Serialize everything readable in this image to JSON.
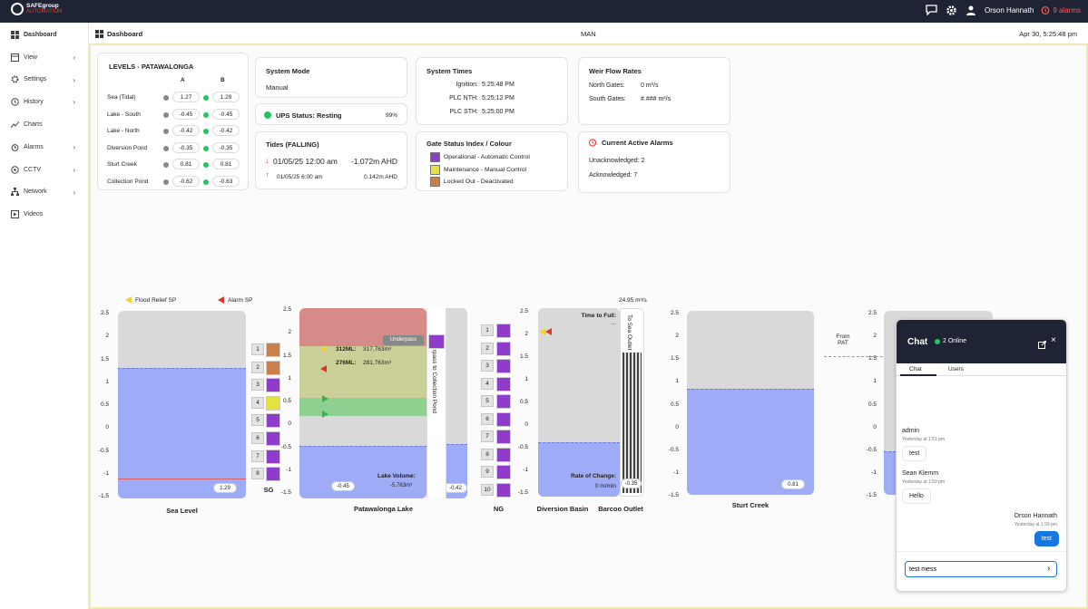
{
  "topbar": {
    "brand_line1": "SAFEgroup",
    "brand_line2": "AUTOMATION",
    "user_name": "Orson Hannath",
    "alarm_count": "9 alarms"
  },
  "sidebar": {
    "items": [
      {
        "label": "Dashboard",
        "icon": "grid-icon",
        "active": true
      },
      {
        "label": "View",
        "icon": "window-icon",
        "chevron": true
      },
      {
        "label": "Settings",
        "icon": "gear-icon",
        "chevron": true
      },
      {
        "label": "History",
        "icon": "history-icon",
        "chevron": true
      },
      {
        "label": "Charts",
        "icon": "trend-icon"
      },
      {
        "label": "Alarms",
        "icon": "alarm-clock-icon",
        "chevron": true
      },
      {
        "label": "CCTV",
        "icon": "camera-icon",
        "chevron": true
      },
      {
        "label": "Network",
        "icon": "network-icon",
        "chevron": true
      },
      {
        "label": "Videos",
        "icon": "play-icon"
      }
    ]
  },
  "header": {
    "title": "Dashboard",
    "mode": "MAN",
    "datetime": "Apr 30, 5:25:48 pm"
  },
  "levels": {
    "title": "LEVELS - PATAWALONGA",
    "col_a": "A",
    "col_b": "B",
    "rows": [
      {
        "name": "Sea (Tidal)",
        "a": "1.27",
        "b": "1.29"
      },
      {
        "name": "Lake - South",
        "a": "-0.45",
        "b": "-0.45"
      },
      {
        "name": "Lake - North",
        "a": "-0.42",
        "b": "-0.42"
      },
      {
        "name": "Diversion Pond",
        "a": "-0.35",
        "b": "-0.35"
      },
      {
        "name": "Sturt Creek",
        "a": "0.81",
        "b": "0.81"
      },
      {
        "name": "Collection Pond",
        "a": "-0.62",
        "b": "-0.63"
      }
    ]
  },
  "system_mode": {
    "title": "System Mode",
    "value": "Manual"
  },
  "ups": {
    "label": "UPS Status: Resting",
    "percent": "99%"
  },
  "tides": {
    "title": "Tides (FALLING)",
    "row1_time": "01/05/25 12:00 am",
    "row1_value": "-1.072m AHD",
    "row2_time": "01/05/25 6:00 am",
    "row2_value": "0.142m AHD"
  },
  "system_times": {
    "title": "System Times",
    "rows": [
      {
        "label": "Ignition:",
        "value": "5:25:48 PM"
      },
      {
        "label": "PLC NTH:",
        "value": "5:25:12 PM"
      },
      {
        "label": "PLC STH:",
        "value": "5:25:00 PM"
      }
    ]
  },
  "gate_status": {
    "title": "Gate Status Index / Colour",
    "items": [
      {
        "label": "Operational - Automatic Control",
        "color": "#8e3cc9"
      },
      {
        "label": "Maintenance - Manual Control",
        "color": "#e4e23c"
      },
      {
        "label": "Locked Out - Deactivated",
        "color": "#c9804a"
      }
    ]
  },
  "weir": {
    "title": "Weir Flow Rates",
    "north_label": "North Gates:",
    "north_value": "0 m³/s",
    "south_label": "South Gates:",
    "south_value": "#.### m³/s"
  },
  "current_alarms": {
    "title": "Current Active Alarms",
    "unack": "Unacknowledged: 2",
    "ack": "Acknowledged: 7"
  },
  "legend": {
    "flood": "Flood Relief SP",
    "alarm": "Alarm SP"
  },
  "axis_ticks": [
    "2.5",
    "2",
    "1.5",
    "1",
    "0.5",
    "0",
    "-0.5",
    "-1",
    "-1.5"
  ],
  "sea": {
    "label": "Sea Level",
    "value": "1.29",
    "level": 1.29
  },
  "sg": {
    "label": "SG",
    "numbers": [
      "1",
      "2",
      "3",
      "4",
      "5",
      "6",
      "7",
      "8"
    ]
  },
  "lake": {
    "label": "Patawalonga Lake",
    "underpass": "Underpass",
    "row1_label": "312ML:",
    "row1_value": "317,763m³",
    "row2_label": "276ML:",
    "row2_value": "281,763m³",
    "volume_label": "Lake Volume:",
    "volume_value": "-5,763m³",
    "left_value": "-0.45",
    "right_value": "-0.42",
    "side_text": "Underpass to Collection Pond",
    "level": -0.45
  },
  "ng": {
    "label": "NG",
    "numbers": [
      "1",
      "2",
      "3",
      "4",
      "5",
      "6",
      "7",
      "8",
      "9",
      "10"
    ]
  },
  "diversion": {
    "label": "Diversion Basin",
    "flow": "24.95 m³/s",
    "time_to_full": "Time to Full:",
    "time_to_full_value": "...",
    "rate_label": "Rate of Change:",
    "rate_value": "0 m/min",
    "level": -0.35
  },
  "barcoo": {
    "label": "Barcoo Outlet",
    "side_text": "To Sea Outlet",
    "value": "-0.35"
  },
  "sturt": {
    "label": "Sturt Creek",
    "value": "0.81",
    "level": 0.81
  },
  "from_pat": "From PAT",
  "chat": {
    "title": "Chat",
    "online": "2 Online",
    "tab_chat": "Chat",
    "tab_users": "Users",
    "messages": [
      {
        "name": "admin",
        "time": "Yesterday at 1:51 pm",
        "text": "test"
      },
      {
        "name": "Sean Klemm",
        "time": "Yesterday at 1:59 pm",
        "text": "Hello"
      },
      {
        "name": "Orson Hannath",
        "time": "Yesterday at 1:59 pm",
        "text": "test"
      }
    ],
    "input_value": "test mess"
  }
}
